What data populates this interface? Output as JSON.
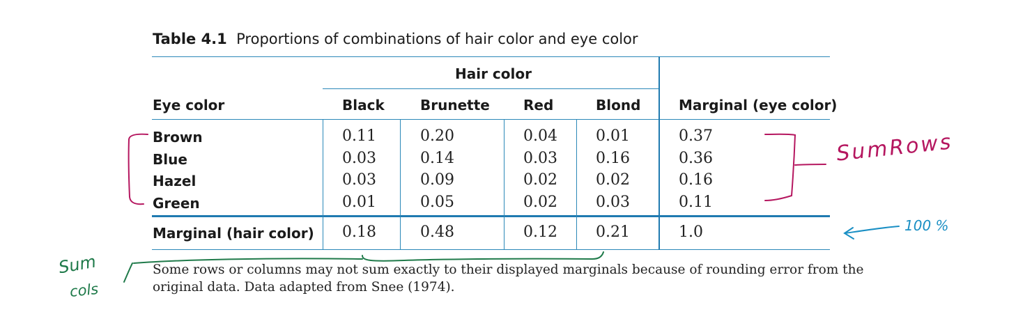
{
  "caption": {
    "label": "Table 4.1",
    "text": "Proportions of combinations of hair color and eye color"
  },
  "table": {
    "group_header": "Hair color",
    "row_header": "Eye color",
    "columns": [
      "Black",
      "Brunette",
      "Red",
      "Blond"
    ],
    "marginal_col_header": "Marginal (eye color)",
    "rows": [
      {
        "label": "Brown",
        "values": [
          "0.11",
          "0.20",
          "0.04",
          "0.01"
        ],
        "marginal": "0.37"
      },
      {
        "label": "Blue",
        "values": [
          "0.03",
          "0.14",
          "0.03",
          "0.16"
        ],
        "marginal": "0.36"
      },
      {
        "label": "Hazel",
        "values": [
          "0.03",
          "0.09",
          "0.02",
          "0.02"
        ],
        "marginal": "0.16"
      },
      {
        "label": "Green",
        "values": [
          "0.01",
          "0.05",
          "0.02",
          "0.03"
        ],
        "marginal": "0.11"
      }
    ],
    "marginal_row": {
      "label": "Marginal (hair color)",
      "values": [
        "0.18",
        "0.48",
        "0.12",
        "0.21"
      ],
      "total": "1.0"
    }
  },
  "note": {
    "line1": "Some rows or columns may not sum exactly to their displayed marginals because of rounding error from the",
    "line2": "original data. Data adapted from Snee (1974)."
  },
  "annotations": {
    "sum_rows": "SumRows",
    "hundred_percent": "100 %",
    "sum_cols_line1": "Sum",
    "sum_cols_line2": "cols",
    "colors": {
      "magenta": "#b5165f",
      "blue": "#1a8fc4",
      "green": "#1f7a4a",
      "table_rule": "#2b88b8"
    }
  }
}
